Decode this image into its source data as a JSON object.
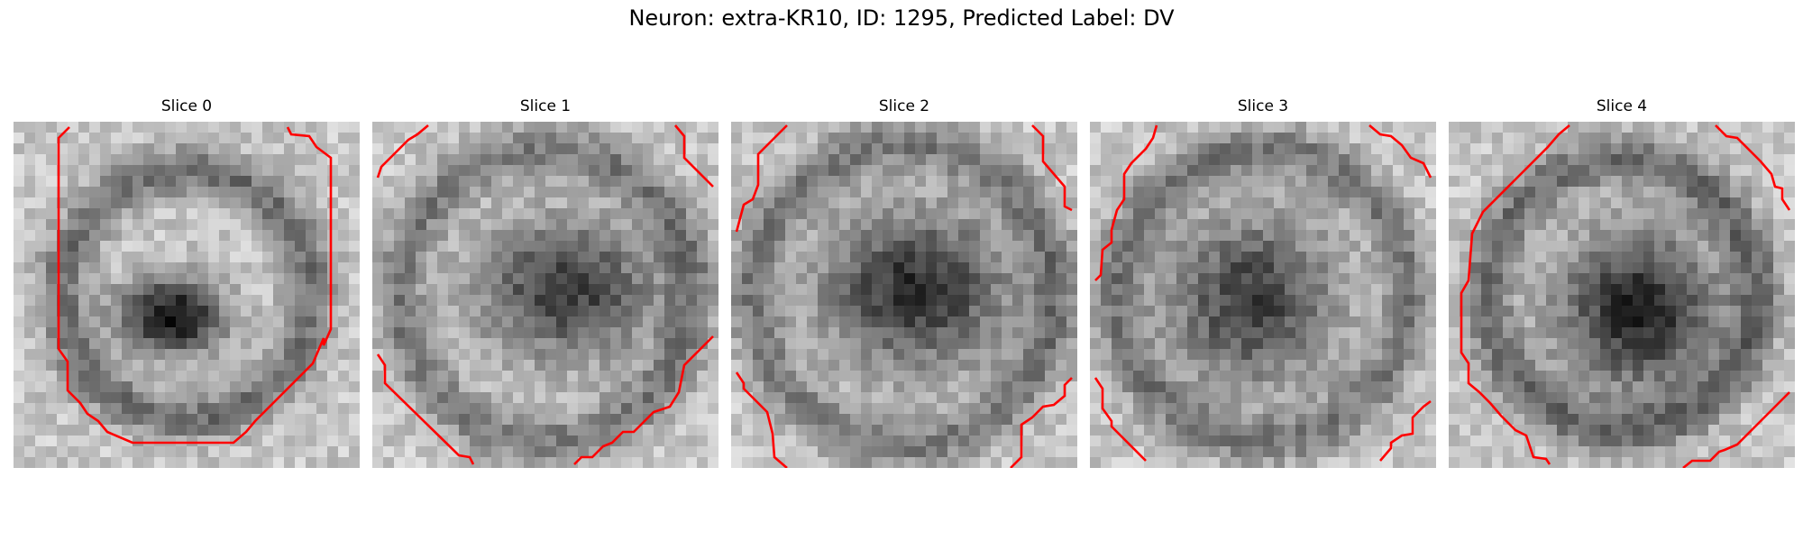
{
  "title": "Neuron: extra-KR10, ID: 1295, Predicted Label: DV",
  "contour_color": "#ff0000",
  "slices": [
    {
      "label": "Slice 0",
      "seed": 11,
      "blob_dx": -1.5,
      "blob_dy": 2.0,
      "blob_rx": 5.0,
      "blob_ry": 3.5,
      "ring_r": 11.5,
      "depth": 0.75,
      "ring_strength": 0.35
    },
    {
      "label": "Slice 1",
      "seed": 23,
      "blob_dx": 2.0,
      "blob_dy": -0.5,
      "blob_rx": 8.5,
      "blob_ry": 6.5,
      "ring_r": 13.5,
      "depth": 0.55,
      "ring_strength": 0.3
    },
    {
      "label": "Slice 2",
      "seed": 37,
      "blob_dx": 1.0,
      "blob_dy": -0.5,
      "blob_rx": 9.0,
      "blob_ry": 7.5,
      "ring_r": 14.0,
      "depth": 0.6,
      "ring_strength": 0.3
    },
    {
      "label": "Slice 3",
      "seed": 41,
      "blob_dx": -1.0,
      "blob_dy": 0.5,
      "blob_rx": 8.0,
      "blob_ry": 8.0,
      "ring_r": 13.5,
      "depth": 0.55,
      "ring_strength": 0.3
    },
    {
      "label": "Slice 4",
      "seed": 53,
      "blob_dx": 1.5,
      "blob_dy": 1.5,
      "blob_rx": 7.5,
      "blob_ry": 7.5,
      "ring_r": 12.5,
      "depth": 0.65,
      "ring_strength": 0.35
    }
  ]
}
